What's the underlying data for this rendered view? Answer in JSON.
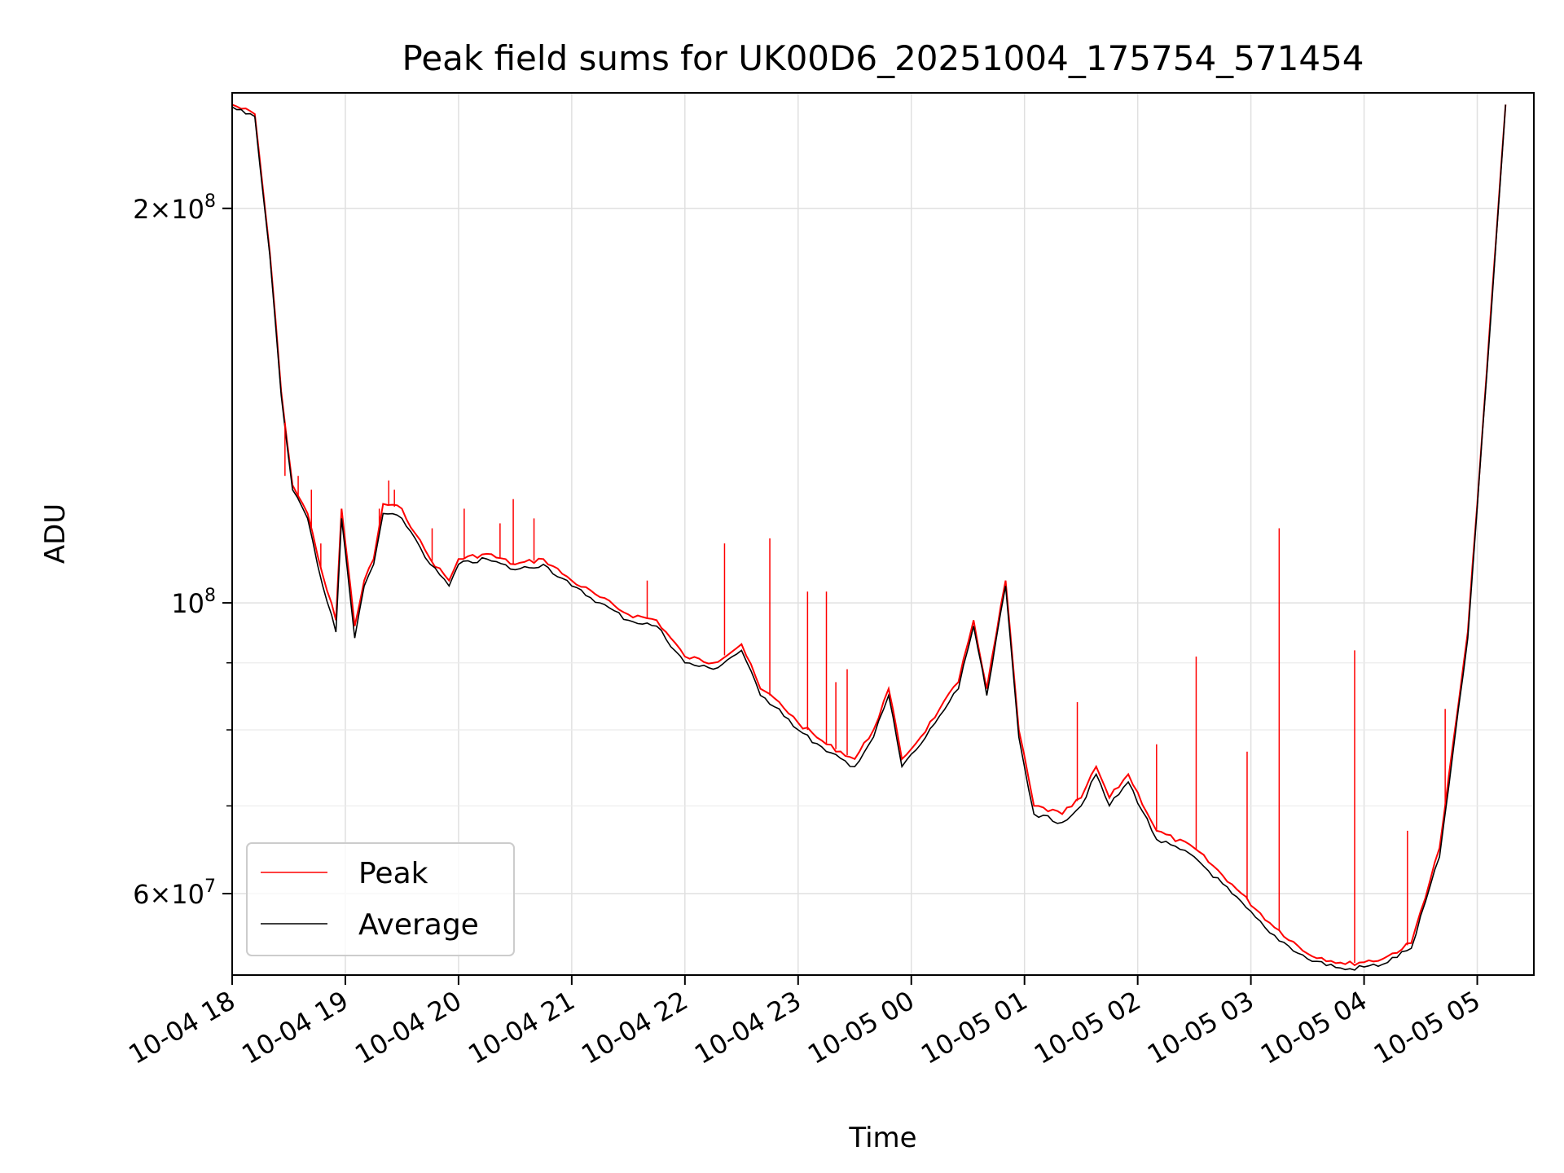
{
  "chart_data": {
    "type": "line",
    "title": "Peak field sums for UK00D6_20251004_175754_571454",
    "xlabel": "Time",
    "ylabel": "ADU",
    "y_scale": "log",
    "grid": true,
    "legend_position": "lower-left",
    "xlim": [
      "2025-10-04 18:00",
      "2025-10-05 05:30"
    ],
    "ylim": [
      52000000,
      245000000
    ],
    "x_ticks": [
      {
        "value": "2025-10-04 18:00",
        "label": "10-04 18"
      },
      {
        "value": "2025-10-04 19:00",
        "label": "10-04 19"
      },
      {
        "value": "2025-10-04 20:00",
        "label": "10-04 20"
      },
      {
        "value": "2025-10-04 21:00",
        "label": "10-04 21"
      },
      {
        "value": "2025-10-04 22:00",
        "label": "10-04 22"
      },
      {
        "value": "2025-10-04 23:00",
        "label": "10-04 23"
      },
      {
        "value": "2025-10-05 00:00",
        "label": "10-05 00"
      },
      {
        "value": "2025-10-05 01:00",
        "label": "10-05 01"
      },
      {
        "value": "2025-10-05 02:00",
        "label": "10-05 02"
      },
      {
        "value": "2025-10-05 03:00",
        "label": "10-05 03"
      },
      {
        "value": "2025-10-05 04:00",
        "label": "10-05 04"
      },
      {
        "value": "2025-10-05 05:00",
        "label": "10-05 05"
      }
    ],
    "y_major_ticks": [
      {
        "value": 60000000,
        "mantissa": "6",
        "exp": "7"
      },
      {
        "value": 100000000,
        "mantissa": "",
        "exp": "8"
      },
      {
        "value": 200000000,
        "mantissa": "2",
        "exp": "8"
      }
    ],
    "y_minor_ticks": [
      70000000,
      80000000,
      90000000
    ],
    "series": [
      {
        "name": "Peak",
        "color": "#ff0000",
        "points": [
          [
            "2025-10-04 18:00",
            240000000
          ],
          [
            "2025-10-04 18:12",
            236000000
          ],
          [
            "2025-10-04 18:20",
            185000000
          ],
          [
            "2025-10-04 18:26",
            145000000
          ],
          [
            "2025-10-04 18:32",
            123000000
          ],
          [
            "2025-10-04 18:40",
            117000000
          ],
          [
            "2025-10-04 18:48",
            105000000
          ],
          [
            "2025-10-04 18:55",
            97000000
          ],
          [
            "2025-10-04 18:58",
            118000000
          ],
          [
            "2025-10-04 19:05",
            96000000
          ],
          [
            "2025-10-04 19:10",
            104000000
          ],
          [
            "2025-10-04 19:15",
            108000000
          ],
          [
            "2025-10-04 19:20",
            119000000
          ],
          [
            "2025-10-04 19:30",
            118000000
          ],
          [
            "2025-10-04 19:37",
            113000000
          ],
          [
            "2025-10-04 19:45",
            108000000
          ],
          [
            "2025-10-04 19:55",
            104000000
          ],
          [
            "2025-10-04 20:00",
            108000000
          ],
          [
            "2025-10-04 20:15",
            109000000
          ],
          [
            "2025-10-04 20:30",
            107000000
          ],
          [
            "2025-10-04 20:45",
            108000000
          ],
          [
            "2025-10-04 21:00",
            104000000
          ],
          [
            "2025-10-04 21:15",
            101000000
          ],
          [
            "2025-10-04 21:30",
            98000000
          ],
          [
            "2025-10-04 21:45",
            97000000
          ],
          [
            "2025-10-04 22:00",
            91000000
          ],
          [
            "2025-10-04 22:15",
            90000000
          ],
          [
            "2025-10-04 22:30",
            93000000
          ],
          [
            "2025-10-04 22:40",
            86000000
          ],
          [
            "2025-10-04 22:50",
            84000000
          ],
          [
            "2025-10-04 23:00",
            81000000
          ],
          [
            "2025-10-04 23:15",
            78000000
          ],
          [
            "2025-10-04 23:30",
            76000000
          ],
          [
            "2025-10-04 23:40",
            80000000
          ],
          [
            "2025-10-04 23:48",
            86000000
          ],
          [
            "2025-10-04 23:55",
            76000000
          ],
          [
            "2025-10-05 00:05",
            79000000
          ],
          [
            "2025-10-05 00:15",
            83000000
          ],
          [
            "2025-10-05 00:25",
            87000000
          ],
          [
            "2025-10-05 00:33",
            97000000
          ],
          [
            "2025-10-05 00:40",
            86000000
          ],
          [
            "2025-10-05 00:50",
            104000000
          ],
          [
            "2025-10-05 00:57",
            80000000
          ],
          [
            "2025-10-05 01:05",
            70000000
          ],
          [
            "2025-10-05 01:20",
            69000000
          ],
          [
            "2025-10-05 01:30",
            71000000
          ],
          [
            "2025-10-05 01:38",
            75000000
          ],
          [
            "2025-10-05 01:45",
            71000000
          ],
          [
            "2025-10-05 01:55",
            74000000
          ],
          [
            "2025-10-05 02:10",
            67000000
          ],
          [
            "2025-10-05 02:30",
            65000000
          ],
          [
            "2025-10-05 02:50",
            61000000
          ],
          [
            "2025-10-05 03:10",
            57000000
          ],
          [
            "2025-10-05 03:30",
            54000000
          ],
          [
            "2025-10-05 03:50",
            53000000
          ],
          [
            "2025-10-05 04:10",
            53500000
          ],
          [
            "2025-10-05 04:25",
            55000000
          ],
          [
            "2025-10-05 04:40",
            65000000
          ],
          [
            "2025-10-05 04:55",
            95000000
          ],
          [
            "2025-10-05 05:05",
            150000000
          ],
          [
            "2025-10-05 05:15",
            240000000
          ]
        ]
      },
      {
        "name": "Average",
        "color": "#000000",
        "points": [
          [
            "2025-10-04 18:00",
            239000000
          ],
          [
            "2025-10-04 18:12",
            235000000
          ],
          [
            "2025-10-04 18:20",
            184000000
          ],
          [
            "2025-10-04 18:26",
            144000000
          ],
          [
            "2025-10-04 18:32",
            122000000
          ],
          [
            "2025-10-04 18:40",
            116000000
          ],
          [
            "2025-10-04 18:48",
            103000000
          ],
          [
            "2025-10-04 18:55",
            95000000
          ],
          [
            "2025-10-04 18:58",
            116000000
          ],
          [
            "2025-10-04 19:05",
            94000000
          ],
          [
            "2025-10-04 19:10",
            103000000
          ],
          [
            "2025-10-04 19:15",
            107000000
          ],
          [
            "2025-10-04 19:20",
            117000000
          ],
          [
            "2025-10-04 19:30",
            116000000
          ],
          [
            "2025-10-04 19:37",
            112000000
          ],
          [
            "2025-10-04 19:45",
            107000000
          ],
          [
            "2025-10-04 19:55",
            103000000
          ],
          [
            "2025-10-04 20:00",
            107000000
          ],
          [
            "2025-10-04 20:15",
            108000000
          ],
          [
            "2025-10-04 20:30",
            106000000
          ],
          [
            "2025-10-04 20:45",
            107000000
          ],
          [
            "2025-10-04 21:00",
            103000000
          ],
          [
            "2025-10-04 21:15",
            100000000
          ],
          [
            "2025-10-04 21:30",
            97000000
          ],
          [
            "2025-10-04 21:45",
            96000000
          ],
          [
            "2025-10-04 22:00",
            90000000
          ],
          [
            "2025-10-04 22:15",
            89000000
          ],
          [
            "2025-10-04 22:30",
            92000000
          ],
          [
            "2025-10-04 22:40",
            85000000
          ],
          [
            "2025-10-04 22:50",
            83000000
          ],
          [
            "2025-10-04 23:00",
            80000000
          ],
          [
            "2025-10-04 23:15",
            77000000
          ],
          [
            "2025-10-04 23:30",
            75000000
          ],
          [
            "2025-10-04 23:40",
            79000000
          ],
          [
            "2025-10-04 23:48",
            85000000
          ],
          [
            "2025-10-04 23:55",
            75000000
          ],
          [
            "2025-10-05 00:05",
            78000000
          ],
          [
            "2025-10-05 00:15",
            82000000
          ],
          [
            "2025-10-05 00:25",
            86000000
          ],
          [
            "2025-10-05 00:33",
            96000000
          ],
          [
            "2025-10-05 00:40",
            85000000
          ],
          [
            "2025-10-05 00:50",
            103000000
          ],
          [
            "2025-10-05 00:57",
            79000000
          ],
          [
            "2025-10-05 01:05",
            69000000
          ],
          [
            "2025-10-05 01:20",
            68000000
          ],
          [
            "2025-10-05 01:30",
            70000000
          ],
          [
            "2025-10-05 01:38",
            74000000
          ],
          [
            "2025-10-05 01:45",
            70000000
          ],
          [
            "2025-10-05 01:55",
            73000000
          ],
          [
            "2025-10-05 02:10",
            66000000
          ],
          [
            "2025-10-05 02:30",
            64000000
          ],
          [
            "2025-10-05 02:50",
            60000000
          ],
          [
            "2025-10-05 03:10",
            56000000
          ],
          [
            "2025-10-05 03:30",
            53500000
          ],
          [
            "2025-10-05 03:50",
            52500000
          ],
          [
            "2025-10-05 04:10",
            53000000
          ],
          [
            "2025-10-05 04:25",
            54500000
          ],
          [
            "2025-10-05 04:40",
            64000000
          ],
          [
            "2025-10-05 04:55",
            94000000
          ],
          [
            "2025-10-05 05:05",
            149000000
          ],
          [
            "2025-10-05 05:15",
            240000000
          ]
        ]
      }
    ],
    "peak_spikes": [
      [
        "2025-10-04 18:28",
        125000000
      ],
      [
        "2025-10-04 18:35",
        125000000
      ],
      [
        "2025-10-04 18:42",
        122000000
      ],
      [
        "2025-10-04 18:47",
        111000000
      ],
      [
        "2025-10-04 19:18",
        118000000
      ],
      [
        "2025-10-04 19:23",
        124000000
      ],
      [
        "2025-10-04 19:26",
        122000000
      ],
      [
        "2025-10-04 19:46",
        114000000
      ],
      [
        "2025-10-04 20:03",
        118000000
      ],
      [
        "2025-10-04 20:22",
        115000000
      ],
      [
        "2025-10-04 20:29",
        120000000
      ],
      [
        "2025-10-04 20:40",
        116000000
      ],
      [
        "2025-10-04 21:40",
        104000000
      ],
      [
        "2025-10-04 22:21",
        111000000
      ],
      [
        "2025-10-04 22:45",
        112000000
      ],
      [
        "2025-10-04 23:05",
        102000000
      ],
      [
        "2025-10-04 23:15",
        102000000
      ],
      [
        "2025-10-04 23:20",
        87000000
      ],
      [
        "2025-10-04 23:26",
        89000000
      ],
      [
        "2025-10-05 01:28",
        84000000
      ],
      [
        "2025-10-05 02:10",
        78000000
      ],
      [
        "2025-10-05 02:31",
        91000000
      ],
      [
        "2025-10-05 02:58",
        77000000
      ],
      [
        "2025-10-05 03:15",
        114000000
      ],
      [
        "2025-10-05 03:55",
        92000000
      ],
      [
        "2025-10-05 04:23",
        67000000
      ],
      [
        "2025-10-05 04:43",
        83000000
      ]
    ]
  }
}
